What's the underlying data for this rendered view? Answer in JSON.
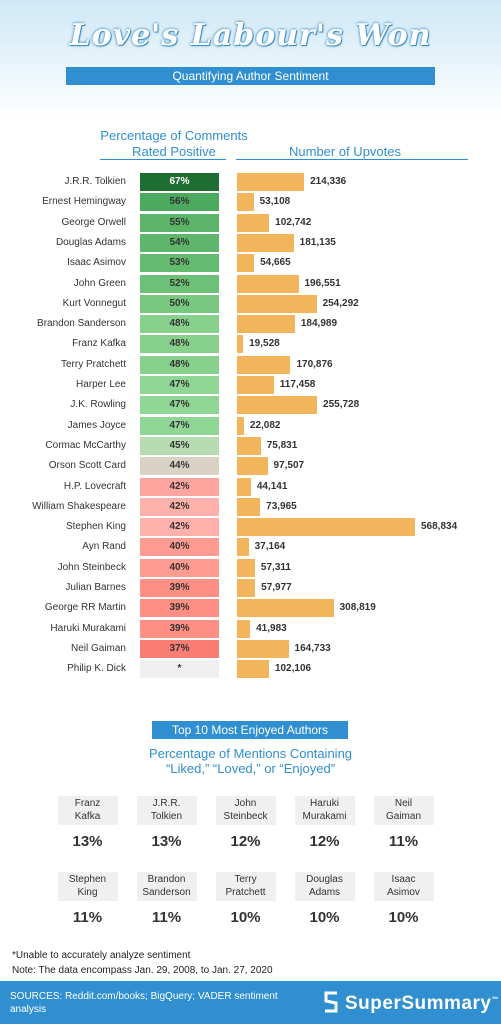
{
  "header": {
    "title": "Love's Labour's Won",
    "subtitle": "Quantifying Author Sentiment"
  },
  "chart_headers": {
    "left_line1": "Percentage of Comments",
    "left_line2": "Rated Positive",
    "right": "Number of Upvotes"
  },
  "colors": {
    "upvote_bar": "#f2b55b",
    "accent_blue": "#2f8fd0"
  },
  "chart_data": {
    "type": "bar",
    "categories": [
      "J.R.R. Tolkien",
      "Ernest Hemingway",
      "George Orwell",
      "Douglas Adams",
      "Isaac Asimov",
      "John Green",
      "Kurt Vonnegut",
      "Brandon Sanderson",
      "Franz Kafka",
      "Terry Pratchett",
      "Harper Lee",
      "J.K. Rowling",
      "James Joyce",
      "Cormac McCarthy",
      "Orson Scott Card",
      "H.P. Lovecraft",
      "William Shakespeare",
      "Stephen King",
      "Ayn Rand",
      "John Steinbeck",
      "Julian Barnes",
      "George RR Martin",
      "Haruki Murakami",
      "Neil Gaiman",
      "Philip K. Dick"
    ],
    "positive_pct_labels": [
      "67%",
      "56%",
      "55%",
      "54%",
      "53%",
      "52%",
      "50%",
      "48%",
      "48%",
      "48%",
      "47%",
      "47%",
      "47%",
      "45%",
      "44%",
      "42%",
      "42%",
      "42%",
      "40%",
      "40%",
      "39%",
      "39%",
      "39%",
      "37%",
      "*"
    ],
    "positive_pct_colors": [
      "#1e6e32",
      "#4caa5e",
      "#5bb468",
      "#5db669",
      "#64ba6e",
      "#6dc077",
      "#78c87f",
      "#88d18c",
      "#88d18c",
      "#88d18c",
      "#8fd593",
      "#8fd593",
      "#8fd593",
      "#b7dcb2",
      "#dbd2c6",
      "#ffa5a0",
      "#ffb0aa",
      "#ffb0aa",
      "#ff9b91",
      "#ff9b91",
      "#ff8f84",
      "#ff8f84",
      "#ff8f84",
      "#fa7d74",
      "#efefef"
    ],
    "upvotes": [
      214336,
      53108,
      102742,
      181135,
      54665,
      196551,
      254292,
      184989,
      19528,
      170876,
      117458,
      255728,
      22082,
      75831,
      97507,
      44141,
      73965,
      568834,
      37164,
      57311,
      57977,
      308819,
      41983,
      164733,
      102106
    ],
    "upvote_labels": [
      "214,336",
      "53,108",
      "102,742",
      "181,135",
      "54,665",
      "196,551",
      "254,292",
      "184,989",
      "19,528",
      "170,876",
      "117,458",
      "255,728",
      "22,082",
      "75,831",
      "97,507",
      "44,141",
      "73,965",
      "568,834",
      "37,164",
      "57,311",
      "57,977",
      "308,819",
      "41,983",
      "164,733",
      "102,106"
    ]
  },
  "top10": {
    "title": "Top 10 Most Enjoyed Authors",
    "subtitle_line1": "Percentage of Mentions Containing",
    "subtitle_line2": "“Liked,” “Loved,” or “Enjoyed”",
    "items": [
      {
        "line1": "Franz",
        "line2": "Kafka",
        "pct": "13%"
      },
      {
        "line1": "J.R.R.",
        "line2": "Tolkien",
        "pct": "13%"
      },
      {
        "line1": "John",
        "line2": "Steinbeck",
        "pct": "12%"
      },
      {
        "line1": "Haruki",
        "line2": "Murakami",
        "pct": "12%"
      },
      {
        "line1": "Neil",
        "line2": "Gaiman",
        "pct": "11%"
      },
      {
        "line1": "Stephen",
        "line2": "King",
        "pct": "11%"
      },
      {
        "line1": "Brandon",
        "line2": "Sanderson",
        "pct": "11%"
      },
      {
        "line1": "Terry",
        "line2": "Pratchett",
        "pct": "10%"
      },
      {
        "line1": "Douglas",
        "line2": "Adams",
        "pct": "10%"
      },
      {
        "line1": "Isaac",
        "line2": "Asimov",
        "pct": "10%"
      }
    ]
  },
  "footnotes": {
    "note1": "*Unable to accurately analyze sentiment",
    "note2": "Note: The data encompass Jan. 29, 2008, to Jan. 27, 2020"
  },
  "footer": {
    "sources_line1": "SOURCES: Reddit.com/books; BigQuery; VADER sentiment",
    "sources_line2": "analysis",
    "brand": "SuperSummary",
    "brand_mark": "™"
  }
}
